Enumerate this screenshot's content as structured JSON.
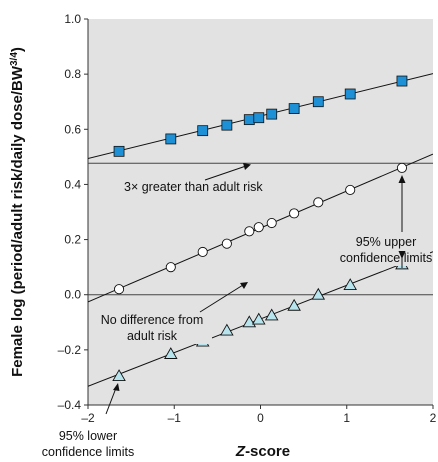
{
  "chart_data": {
    "type": "scatter",
    "xlabel": "Z-score",
    "ylabel": "Female log (period/adult risk/daily dose/BW3/4)",
    "ylabel_parts": {
      "main": "Female log (period/adult risk/daily dose/BW",
      "sup": "3/4",
      "close": ")"
    },
    "xlabel_parts": {
      "italic": "Z",
      "rest": "-score"
    },
    "xlim": [
      -2,
      2
    ],
    "ylim": [
      -0.4,
      1.0
    ],
    "x_ticks": [
      -2,
      -1,
      0,
      1,
      2
    ],
    "x_tick_labels": [
      "–2",
      "–1",
      "0",
      "1",
      "2"
    ],
    "y_ticks": [
      -0.4,
      -0.2,
      0.0,
      0.2,
      0.4,
      0.6,
      0.8,
      1.0
    ],
    "y_tick_labels": [
      "–0.4",
      "–0.2",
      "0.0",
      "0.2",
      "0.4",
      "0.6",
      "0.8",
      "1.0"
    ],
    "grid": false,
    "reference_lines": [
      {
        "y": 0.477,
        "label": "3× greater than adult risk"
      },
      {
        "y": 0.0,
        "label_lines": [
          "No difference from",
          "adult risk"
        ]
      }
    ],
    "series": [
      {
        "marker": "square",
        "color": "#1e90d6",
        "x": [
          -1.64,
          -1.04,
          -0.67,
          -0.39,
          -0.13,
          -0.02,
          0.13,
          0.39,
          0.67,
          1.04,
          1.64
        ],
        "y": [
          0.52,
          0.565,
          0.595,
          0.615,
          0.635,
          0.642,
          0.655,
          0.675,
          0.7,
          0.728,
          0.775
        ],
        "fit": {
          "slope": 0.077,
          "intercept": 0.648
        }
      },
      {
        "marker": "circle",
        "color": "#ffffff",
        "x": [
          -1.64,
          -1.04,
          -0.67,
          -0.39,
          -0.13,
          -0.02,
          0.13,
          0.39,
          0.67,
          1.04,
          1.64
        ],
        "y": [
          0.02,
          0.1,
          0.155,
          0.185,
          0.23,
          0.245,
          0.26,
          0.295,
          0.335,
          0.38,
          0.46
        ],
        "fit": {
          "slope": 0.134,
          "intercept": 0.242
        }
      },
      {
        "marker": "triangle",
        "color": "#b8e4ee",
        "x": [
          -1.64,
          -1.04,
          -0.67,
          -0.39,
          -0.13,
          -0.02,
          0.13,
          0.39,
          0.67,
          1.04,
          1.64
        ],
        "y": [
          -0.295,
          -0.215,
          -0.17,
          -0.13,
          -0.1,
          -0.09,
          -0.075,
          -0.04,
          0.0,
          0.035,
          0.11
        ],
        "fit": {
          "slope": 0.122,
          "intercept": -0.088
        }
      }
    ],
    "annotations": [
      {
        "lines": [
          "95% upper",
          "confidence limits"
        ]
      },
      {
        "lines": [
          "95% lower",
          "confidence limits"
        ]
      }
    ]
  }
}
